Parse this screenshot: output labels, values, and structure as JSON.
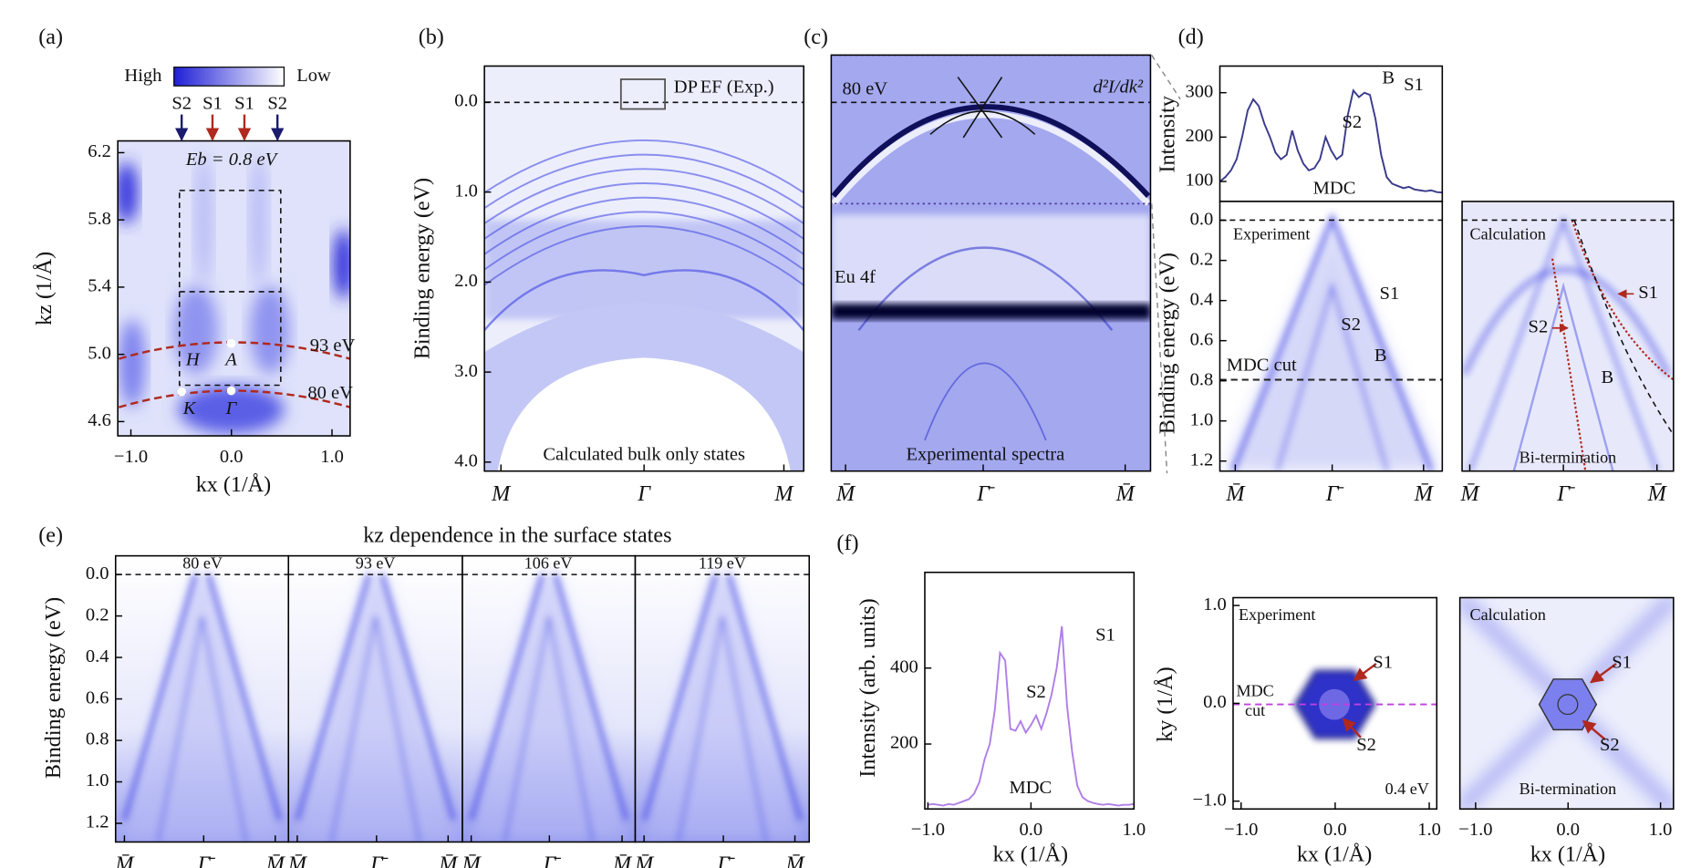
{
  "chart_data": [
    {
      "type": "image",
      "label": "(a)",
      "xlabel": "kx (1/Å)",
      "ylabel": "kz (1/Å)",
      "xlim": [
        -1.13,
        1.18
      ],
      "xticks": [
        {
          "value": -1,
          "label": "−1.0"
        },
        {
          "value": 0,
          "label": "0.0"
        },
        {
          "value": 1,
          "label": "1.0"
        }
      ],
      "ylim": [
        4.515,
        6.27
      ],
      "yticks": [
        4.6,
        {
          "value": 5,
          "label": "5.0"
        },
        5.4,
        5.8,
        6.2
      ],
      "annotations": [
        "High",
        "Low",
        "S2",
        "S1",
        "S1",
        "S2",
        "Eb = 0.8 eV",
        "93 eV",
        "80 eV",
        "H",
        "A",
        "K",
        "Γ"
      ]
    },
    {
      "type": "image",
      "label": "(b)",
      "ylabel": "Binding energy (eV)",
      "categories": [
        "M",
        "Γ",
        "M"
      ],
      "ylim": [
        4.1,
        -0.4
      ],
      "yticks": [
        {
          "value": 0,
          "label": "0.0"
        },
        {
          "value": 1,
          "label": "1.0"
        },
        {
          "value": 2,
          "label": "2.0"
        },
        {
          "value": 3,
          "label": "3.0"
        },
        {
          "value": 4,
          "label": "4.0"
        }
      ],
      "annotations": [
        "DP",
        "EF (Exp.)",
        "Calculated bulk only states"
      ]
    },
    {
      "type": "image",
      "label": "(c)",
      "categories": [
        "M̄",
        "Γ̄",
        "M̄"
      ],
      "annotations": [
        "80 eV",
        "d²I/dk²",
        "Eu 4f",
        "Experimental spectra"
      ]
    },
    {
      "type": "line",
      "label": "(d)",
      "ylabel": "Intensity",
      "color": "#3b3b8c",
      "ylim": [
        55,
        360
      ],
      "yticks": [
        100,
        200,
        300
      ],
      "values": [
        100,
        110,
        125,
        150,
        200,
        260,
        285,
        270,
        230,
        200,
        165,
        150,
        160,
        215,
        170,
        140,
        125,
        130,
        150,
        200,
        170,
        150,
        160,
        250,
        305,
        290,
        300,
        295,
        240,
        160,
        110,
        95,
        90,
        85,
        88,
        82,
        80,
        78,
        80,
        76,
        75
      ],
      "annotations": [
        "MDC",
        "S2",
        "B",
        "S1"
      ]
    },
    {
      "type": "image",
      "ylabel": "Binding energy (eV)",
      "categories": [
        "M̄",
        "Γ̄",
        "M̄"
      ],
      "ylim": [
        1.25,
        -0.094
      ],
      "yticks": [
        {
          "value": 0,
          "label": "0.0"
        },
        0.2,
        0.4,
        0.6,
        0.8,
        {
          "value": 1,
          "label": "1.0"
        },
        1.2
      ],
      "annotations": [
        "Experiment",
        "S1",
        "S2",
        "B",
        "MDC cut"
      ]
    },
    {
      "type": "image",
      "categories": [
        "M̄",
        "Γ̄",
        "M̄"
      ],
      "annotations": [
        "Calculation",
        "S1",
        "S2",
        "B",
        "Bi-termination"
      ]
    },
    {
      "type": "image",
      "label": "(e)",
      "title": "kz dependence in the surface states",
      "ylabel": "Binding energy (eV)",
      "categories": [
        "M̄",
        "Γ̄",
        "M̄"
      ],
      "ylim": [
        1.29,
        -0.09
      ],
      "yticks": [
        {
          "value": 0,
          "label": "0.0"
        },
        0.2,
        0.4,
        0.6,
        0.8,
        {
          "value": 1,
          "label": "1.0"
        },
        1.2
      ],
      "annotations": [
        "80 eV"
      ]
    },
    {
      "type": "image",
      "categories": [
        "M̄",
        "Γ̄",
        "M̄"
      ],
      "annotations": [
        "93 eV"
      ]
    },
    {
      "type": "image",
      "categories": [
        "M̄",
        "Γ̄",
        "M̄"
      ],
      "annotations": [
        "106 eV"
      ]
    },
    {
      "type": "image",
      "categories": [
        "M̄",
        "Γ̄",
        "M̄"
      ],
      "annotations": [
        "119 eV"
      ]
    },
    {
      "type": "line",
      "label": "(f)",
      "xlabel": "kx (1/Å)",
      "ylabel": "Intensity (arb. units)",
      "color": "#b07fe6",
      "xlim": [
        -1.03,
        1.0
      ],
      "xticks": [
        {
          "value": -1,
          "label": "−1.0"
        },
        {
          "value": 0,
          "label": "0.0"
        },
        {
          "value": 1,
          "label": "1.0"
        }
      ],
      "ylim": [
        29,
        652
      ],
      "yticks": [
        200,
        400
      ],
      "x": [
        -1.0,
        -0.95,
        -0.9,
        -0.85,
        -0.8,
        -0.75,
        -0.7,
        -0.65,
        -0.6,
        -0.55,
        -0.5,
        -0.45,
        -0.4,
        -0.35,
        -0.3,
        -0.25,
        -0.2,
        -0.15,
        -0.1,
        -0.05,
        0.0,
        0.05,
        0.1,
        0.15,
        0.2,
        0.25,
        0.3,
        0.35,
        0.4,
        0.45,
        0.5,
        0.55,
        0.6,
        0.65,
        0.7,
        0.75,
        0.8,
        0.85,
        0.9,
        0.95,
        1.0
      ],
      "values": [
        40,
        42,
        40,
        38,
        42,
        40,
        45,
        50,
        55,
        70,
        100,
        160,
        200,
        290,
        440,
        420,
        240,
        235,
        260,
        230,
        250,
        275,
        240,
        280,
        330,
        400,
        510,
        300,
        180,
        90,
        60,
        50,
        45,
        42,
        40,
        42,
        40,
        38,
        40,
        40,
        42
      ],
      "annotations": [
        "S1",
        "S2",
        "MDC"
      ]
    },
    {
      "type": "image",
      "xlabel": "kx (1/Å)",
      "ylabel": "ky (1/Å)",
      "xlim": [
        -1.085,
        1.08
      ],
      "xticks": [
        {
          "value": -1,
          "label": "−1.0"
        },
        {
          "value": 0,
          "label": "0.0"
        },
        {
          "value": 1,
          "label": "1.0"
        }
      ],
      "ylim": [
        -1.08,
        1.08
      ],
      "yticks": [
        {
          "value": -1,
          "label": "−1.0"
        },
        {
          "value": 0,
          "label": "0.0"
        },
        {
          "value": 1,
          "label": "1.0"
        }
      ],
      "annotations": [
        "Experiment",
        "S1",
        "S2",
        "MDC",
        "cut",
        "0.4 eV"
      ]
    },
    {
      "type": "image",
      "xlabel": "kx (1/Å)",
      "xlim": [
        -1.17,
        1.14
      ],
      "xticks": [
        {
          "value": -1,
          "label": "−1.0"
        },
        {
          "value": 0,
          "label": "0.0"
        },
        {
          "value": 1,
          "label": "1.0"
        }
      ],
      "annotations": [
        "Calculation",
        "S1",
        "S2",
        "Bi-termination"
      ]
    }
  ]
}
